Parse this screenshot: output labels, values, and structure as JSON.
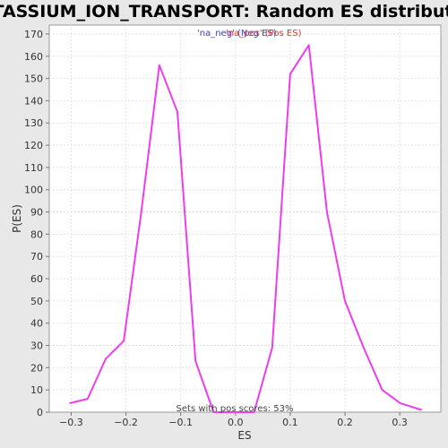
{
  "chart_data": {
    "type": "line",
    "title": "POTASSIUM_ION_TRANSPORT: Random ES distribution",
    "xlabel": "ES",
    "ylabel": "P(ES)",
    "xlim": [
      -0.34,
      0.375
    ],
    "ylim": [
      0,
      174
    ],
    "xticks": [
      -0.3,
      -0.2,
      -0.1,
      0.0,
      0.1,
      0.2,
      0.3
    ],
    "xtick_labels": [
      "−0.3",
      "−0.2",
      "−0.1",
      "0.0",
      "0.1",
      "0.2",
      "0.3"
    ],
    "yticks": [
      0,
      10,
      20,
      30,
      40,
      50,
      60,
      70,
      80,
      90,
      100,
      110,
      120,
      130,
      140,
      150,
      160,
      170
    ],
    "grid": true,
    "legend": {
      "position": "top-center",
      "entries": [
        {
          "label": "'na_neg' (Neg ES)",
          "color": "#4040d0"
        },
        {
          "label": "'na_pos' (Pos ES)",
          "color": "#e03030"
        }
      ]
    },
    "annotation": "Sets with pos scores: 53%",
    "series": [
      {
        "color": "#ee3cee",
        "x": [
          -0.303,
          -0.27,
          -0.237,
          -0.204,
          -0.172,
          -0.139,
          -0.106,
          -0.073,
          -0.04,
          -0.007,
          0.026,
          0.034,
          0.067,
          0.1,
          0.134,
          0.167,
          0.2,
          0.234,
          0.268,
          0.301,
          0.34
        ],
        "y": [
          4,
          6,
          24,
          32,
          90,
          156,
          135,
          23,
          0,
          0,
          0,
          0,
          29,
          152,
          165,
          90,
          50,
          29,
          10,
          4,
          1
        ]
      }
    ]
  }
}
